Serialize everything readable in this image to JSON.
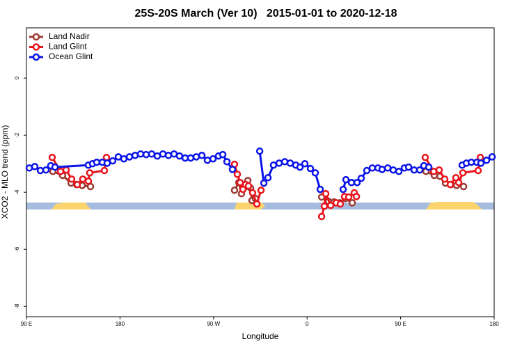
{
  "chart_data": {
    "type": "line",
    "title": "25S-20S March (Ver 10)   2015-01-01 to 2020-12-18",
    "x_label": "Longitude",
    "y_label": "XCO2 - MLO trend (ppm)",
    "xlim": [
      90,
      540
    ],
    "xticks": [
      {
        "value": 90,
        "label": "90 E"
      },
      180,
      {
        "value": 270,
        "label": "90 W"
      },
      {
        "value": 360,
        "label": "0"
      },
      {
        "value": 450,
        "label": "90 E"
      },
      {
        "value": 540,
        "label": "180"
      }
    ],
    "ylim": [
      -8.36,
      1.76
    ],
    "yticks": [
      0,
      -2,
      -4,
      -6,
      -8
    ],
    "legend": "top-left",
    "series": [
      {
        "name": "Land Nadir",
        "color": "#9b3a33",
        "x": [
          115.4,
          124.8,
          132.9,
          138.2,
          143.6,
          151.6,
          null,
          290.2,
          294.3,
          296.9,
          299.6,
          303.0,
          305.6,
          307.0,
          310.3,
          null,
          374.0,
          380.6,
          386.0,
          391.4,
          396.7,
          403.4,
          null,
          474.4,
          482.4,
          487.8,
          493.2,
          498.5,
          503.9,
          510.6
        ],
        "values": [
          -3.27,
          -3.41,
          -3.68,
          -3.73,
          -3.76,
          -3.8,
          null,
          -3.93,
          -3.66,
          -4.05,
          -3.83,
          -3.59,
          -3.85,
          -4.29,
          -4.22,
          null,
          -4.17,
          -4.32,
          -4.34,
          -4.37,
          -4.22,
          -4.37,
          null,
          -3.27,
          -3.41,
          -3.44,
          -3.68,
          -3.73,
          -3.76,
          -3.8
        ]
      },
      {
        "name": "Land Glint",
        "color": "#e8141b",
        "x": [
          114.8,
          122.8,
          128.2,
          133.5,
          138.9,
          144.2,
          149.6,
          150.9,
          165.0,
          167.0,
          null,
          290.2,
          292.9,
          295.6,
          298.3,
          300.9,
          303.6,
          307.6,
          311.7,
          315.7,
          null,
          374.0,
          376.6,
          378.0,
          382.7,
          388.0,
          392.0,
          396.1,
          400.1,
          405.4,
          407.5,
          null,
          473.7,
          481.8,
          487.1,
          492.5,
          497.8,
          503.2,
          505.9,
          509.9,
          524.6,
          526.7
        ],
        "values": [
          -2.78,
          -3.27,
          -3.22,
          -3.54,
          -3.73,
          -3.54,
          -3.61,
          -3.32,
          -3.24,
          -2.78,
          null,
          -3.02,
          -3.37,
          -3.66,
          -3.9,
          -3.73,
          -3.78,
          -4.02,
          -4.41,
          -3.93,
          null,
          -4.85,
          -4.49,
          -4.05,
          -4.46,
          -4.37,
          -4.41,
          -4.15,
          -4.17,
          -4.02,
          -4.15,
          null,
          -2.78,
          -3.27,
          -3.22,
          -3.54,
          -3.73,
          -3.49,
          -3.66,
          -3.32,
          -3.24,
          -2.78
        ]
      },
      {
        "name": "Ocean Glint",
        "color": "#0a14e8",
        "x": [
          92.7,
          98.0,
          103.4,
          108.8,
          113.4,
          117.5,
          149.6,
          153.6,
          157.6,
          163.0,
          167.7,
          173.0,
          178.4,
          183.7,
          189.1,
          194.5,
          199.8,
          205.2,
          210.5,
          215.9,
          221.3,
          226.6,
          232.0,
          237.3,
          242.7,
          248.0,
          253.4,
          258.8,
          264.1,
          269.5,
          274.8,
          278.9,
          282.9,
          288.2,
          null,
          314.4,
          318.4,
          322.4,
          327.7,
          333.1,
          338.5,
          343.8,
          349.2,
          353.2,
          357.9,
          363.2,
          367.9,
          372.6,
          null,
          394.7,
          397.4,
          402.7,
          408.1,
          412.1,
          417.5,
          422.8,
          428.2,
          432.2,
          437.6,
          442.9,
          448.3,
          453.6,
          457.7,
          463.0,
          468.4,
          472.4,
          477.1,
          null,
          509.2,
          513.3,
          518.0,
          523.3,
          527.3,
          532.7,
          538.0
        ],
        "values": [
          -3.15,
          -3.1,
          -3.24,
          -3.22,
          -3.07,
          -3.12,
          -3.05,
          -3.0,
          -2.95,
          -2.95,
          -2.98,
          -2.9,
          -2.76,
          -2.83,
          -2.76,
          -2.71,
          -2.66,
          -2.68,
          -2.66,
          -2.73,
          -2.66,
          -2.71,
          -2.66,
          -2.73,
          -2.8,
          -2.8,
          -2.76,
          -2.71,
          -2.88,
          -2.83,
          -2.73,
          -2.68,
          -2.93,
          -3.2,
          null,
          -2.56,
          -3.68,
          -3.49,
          -3.05,
          -2.98,
          -2.93,
          -2.98,
          -3.05,
          -3.12,
          -3.0,
          -3.17,
          -3.32,
          -3.9,
          null,
          -3.9,
          -3.56,
          -3.66,
          -3.66,
          -3.51,
          -3.24,
          -3.15,
          -3.15,
          -3.2,
          -3.15,
          -3.22,
          -3.27,
          -3.15,
          -3.12,
          -3.22,
          -3.22,
          -3.07,
          -3.12,
          null,
          -3.05,
          -2.98,
          -2.95,
          -2.95,
          -2.98,
          -2.88,
          -2.76
        ]
      }
    ]
  }
}
